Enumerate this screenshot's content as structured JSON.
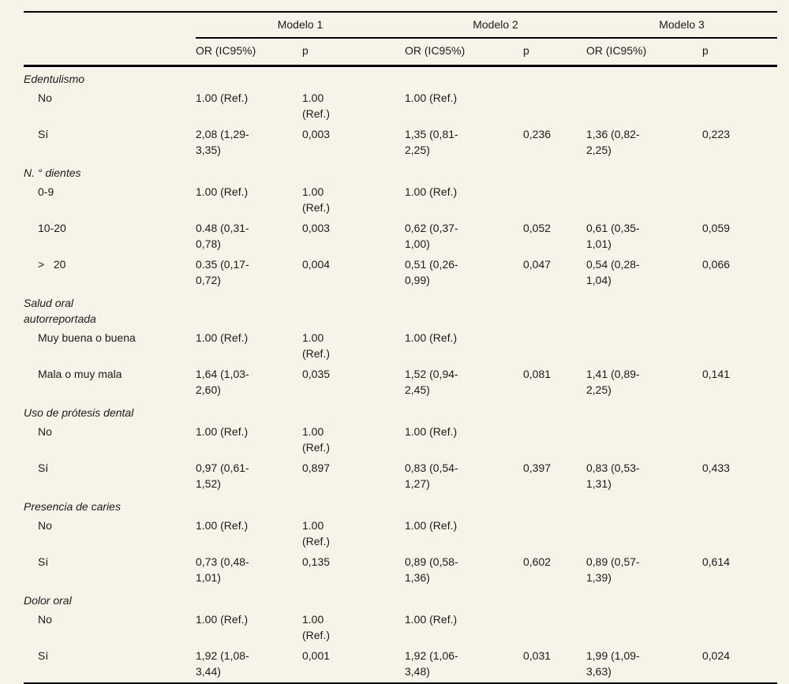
{
  "page": {
    "background_color": "#f6f3e9",
    "text_color": "#1b1b1b",
    "rule_color": "#000000"
  },
  "table": {
    "col_groups": [
      {
        "label": "Modelo 1"
      },
      {
        "label": "Modelo 2"
      },
      {
        "label": "Modelo 3"
      }
    ],
    "sub_headers": {
      "or": "OR (IC95%)",
      "p": "p"
    },
    "sections": [
      {
        "label": "Edentulismo",
        "rows": [
          {
            "label": "No",
            "m1_or": "1.00 (Ref.)",
            "m1_p": "1.00\n(Ref.)",
            "m2_or": "1.00 (Ref.)",
            "m2_p": "",
            "m3_or": "",
            "m3_p": ""
          },
          {
            "label": "Sí",
            "m1_or": "2,08 (1,29-\n3,35)",
            "m1_p": "0,003",
            "m2_or": "1,35 (0,81-\n2,25)",
            "m2_p": "0,236",
            "m3_or": "1,36 (0,82-\n2,25)",
            "m3_p": "0,223"
          }
        ]
      },
      {
        "label": "N. ° dientes",
        "rows": [
          {
            "label": "0-9",
            "m1_or": "1.00 (Ref.)",
            "m1_p": "1.00\n(Ref.)",
            "m2_or": "1.00 (Ref.)",
            "m2_p": "",
            "m3_or": "",
            "m3_p": ""
          },
          {
            "label": "10-20",
            "m1_or": "0.48 (0,31-\n0,78)",
            "m1_p": "0,003",
            "m2_or": "0,62 (0,37-\n1,00)",
            "m2_p": "0,052",
            "m3_or": "0,61 (0,35-\n1,01)",
            "m3_p": "0,059"
          },
          {
            "label": ">   20",
            "m1_or": "0.35 (0,17-\n0,72)",
            "m1_p": "0,004",
            "m2_or": "0,51 (0,26-\n0,99)",
            "m2_p": "0,047",
            "m3_or": "0,54 (0,28-\n1,04)",
            "m3_p": "0,066"
          }
        ]
      },
      {
        "label": "Salud oral\nautorreportada",
        "rows": [
          {
            "label": "Muy buena o buena",
            "m1_or": "1.00 (Ref.)",
            "m1_p": "1.00\n(Ref.)",
            "m2_or": "1.00 (Ref.)",
            "m2_p": "",
            "m3_or": "",
            "m3_p": ""
          },
          {
            "label": "Mala o muy mala",
            "m1_or": "1,64 (1,03-\n2,60)",
            "m1_p": "0,035",
            "m2_or": "1,52 (0,94-\n2,45)",
            "m2_p": "0,081",
            "m3_or": "1,41 (0,89-\n2,25)",
            "m3_p": "0,141"
          }
        ]
      },
      {
        "label": "Uso de prótesis dental",
        "rows": [
          {
            "label": "No",
            "m1_or": "1.00 (Ref.)",
            "m1_p": "1.00\n(Ref.)",
            "m2_or": "1.00 (Ref.)",
            "m2_p": "",
            "m3_or": "",
            "m3_p": ""
          },
          {
            "label": "Sí",
            "m1_or": "0,97 (0,61-\n1,52)",
            "m1_p": "0,897",
            "m2_or": "0,83 (0,54-\n1,27)",
            "m2_p": "0,397",
            "m3_or": "0,83 (0,53-\n1,31)",
            "m3_p": "0,433"
          }
        ]
      },
      {
        "label": "Presencia de caries",
        "rows": [
          {
            "label": "No",
            "m1_or": "1.00 (Ref.)",
            "m1_p": "1.00\n(Ref.)",
            "m2_or": "1.00 (Ref.)",
            "m2_p": "",
            "m3_or": "",
            "m3_p": ""
          },
          {
            "label": "Sí",
            "m1_or": "0,73 (0,48-\n1,01)",
            "m1_p": "0,135",
            "m2_or": "0,89 (0,58-\n1,36)",
            "m2_p": "0,602",
            "m3_or": "0,89 (0,57-\n1,39)",
            "m3_p": "0,614"
          }
        ]
      },
      {
        "label": "Dolor oral",
        "rows": [
          {
            "label": "No",
            "m1_or": "1.00 (Ref.)",
            "m1_p": "1.00\n(Ref.)",
            "m2_or": "1.00 (Ref.)",
            "m2_p": "",
            "m3_or": "",
            "m3_p": ""
          },
          {
            "label": "Sí",
            "m1_or": "1,92 (1,08-\n3,44)",
            "m1_p": "0,001",
            "m2_or": "1,92 (1,06-\n3,48)",
            "m2_p": "0,031",
            "m3_or": "1,99 (1,09-\n3,63)",
            "m3_p": "0,024"
          }
        ]
      }
    ]
  }
}
